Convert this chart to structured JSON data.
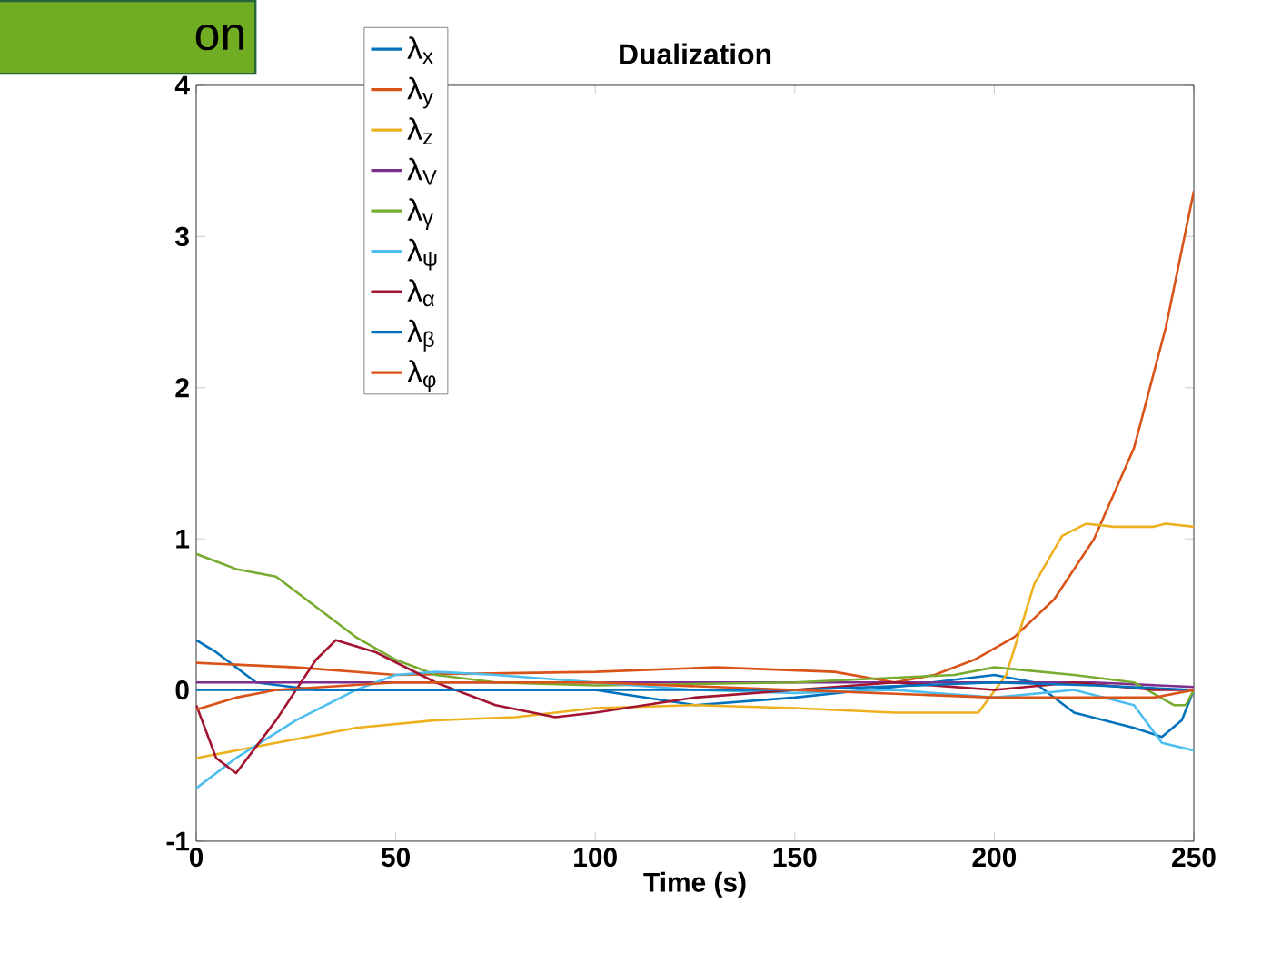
{
  "chart_data": {
    "type": "line",
    "title": "Dualization",
    "xlabel": "Time (s)",
    "annotations": [
      "on"
    ],
    "xlim": [
      0,
      250
    ],
    "ylim": [
      -1,
      4
    ],
    "xticks": [
      0,
      50,
      100,
      150,
      200,
      250
    ],
    "yticks": [
      -1,
      0,
      1,
      2,
      3,
      4
    ],
    "grid": false,
    "legend": "top left",
    "line_style": "solid",
    "marker": "none",
    "series": [
      {
        "name": "λ$_{x}$",
        "color": "#0072bd",
        "x": [
          0,
          5,
          15,
          30,
          60,
          100,
          125,
          150,
          175,
          200,
          210,
          220,
          235,
          242,
          247,
          250
        ],
        "values": [
          0.33,
          0.25,
          0.05,
          0,
          0,
          0,
          -0.1,
          -0.05,
          0.02,
          0.1,
          0.05,
          -0.15,
          -0.25,
          -0.31,
          -0.2,
          0
        ]
      },
      {
        "name": "λ$_{y}$",
        "color": "#d95319",
        "x": [
          0,
          25,
          50,
          100,
          130,
          160,
          175,
          185,
          195,
          205,
          215,
          225,
          235,
          243,
          250
        ],
        "values": [
          0.18,
          0.15,
          0.1,
          0.12,
          0.15,
          0.12,
          0.05,
          0.1,
          0.2,
          0.35,
          0.6,
          1.0,
          1.6,
          2.4,
          3.3
        ]
      },
      {
        "name": "λ$_{z}$",
        "color": "#edb120",
        "x": [
          0,
          10,
          20,
          40,
          60,
          80,
          100,
          125,
          150,
          175,
          196,
          203,
          210,
          217,
          223,
          230,
          240,
          243,
          250
        ],
        "values": [
          -0.45,
          -0.4,
          -0.35,
          -0.25,
          -0.2,
          -0.18,
          -0.12,
          -0.1,
          -0.12,
          -0.15,
          -0.15,
          0.1,
          0.7,
          1.02,
          1.1,
          1.08,
          1.08,
          1.1,
          1.08
        ]
      },
      {
        "name": "λ$_{V}$",
        "color": "#7e2f8e",
        "x": [
          0,
          50,
          100,
          150,
          200,
          225,
          250
        ],
        "values": [
          0.05,
          0.05,
          0.05,
          0.05,
          0.05,
          0.05,
          0.02
        ]
      },
      {
        "name": "λ$_{γ}$",
        "color": "#77ac30",
        "x": [
          0,
          10,
          20,
          30,
          40,
          50,
          60,
          75,
          100,
          150,
          190,
          200,
          220,
          235,
          245,
          248,
          250
        ],
        "values": [
          0.9,
          0.8,
          0.75,
          0.55,
          0.35,
          0.2,
          0.1,
          0.05,
          0.03,
          0.05,
          0.1,
          0.15,
          0.1,
          0.05,
          -0.1,
          -0.1,
          0
        ]
      },
      {
        "name": "λ$_{ψ}$",
        "color": "#4dbeee",
        "x": [
          0,
          10,
          25,
          40,
          50,
          60,
          75,
          100,
          125,
          150,
          175,
          200,
          220,
          235,
          242,
          250
        ],
        "values": [
          -0.65,
          -0.45,
          -0.2,
          0,
          0.1,
          0.12,
          0.1,
          0.05,
          0,
          -0.02,
          0,
          -0.05,
          0,
          -0.1,
          -0.35,
          -0.4
        ]
      },
      {
        "name": "λ$_{α}$",
        "color": "#a2142f",
        "x": [
          0,
          5,
          10,
          20,
          30,
          35,
          45,
          60,
          75,
          90,
          100,
          125,
          150,
          175,
          200,
          220,
          240,
          250
        ],
        "values": [
          -0.1,
          -0.45,
          -0.55,
          -0.2,
          0.2,
          0.33,
          0.25,
          0.05,
          -0.1,
          -0.18,
          -0.15,
          -0.05,
          0,
          0.05,
          0,
          0.05,
          0,
          0
        ]
      },
      {
        "name": "λ$_{β}$",
        "color": "#0072bd",
        "x": [
          0,
          50,
          100,
          150,
          200,
          225,
          250
        ],
        "values": [
          0,
          0,
          0,
          0,
          0.05,
          0.03,
          0
        ]
      },
      {
        "name": "λ$_{φ}$",
        "color": "#d95319",
        "x": [
          0,
          10,
          20,
          50,
          100,
          150,
          200,
          220,
          240,
          250
        ],
        "values": [
          -0.13,
          -0.05,
          0,
          0.05,
          0.05,
          0,
          -0.05,
          -0.05,
          -0.05,
          0
        ]
      }
    ]
  }
}
